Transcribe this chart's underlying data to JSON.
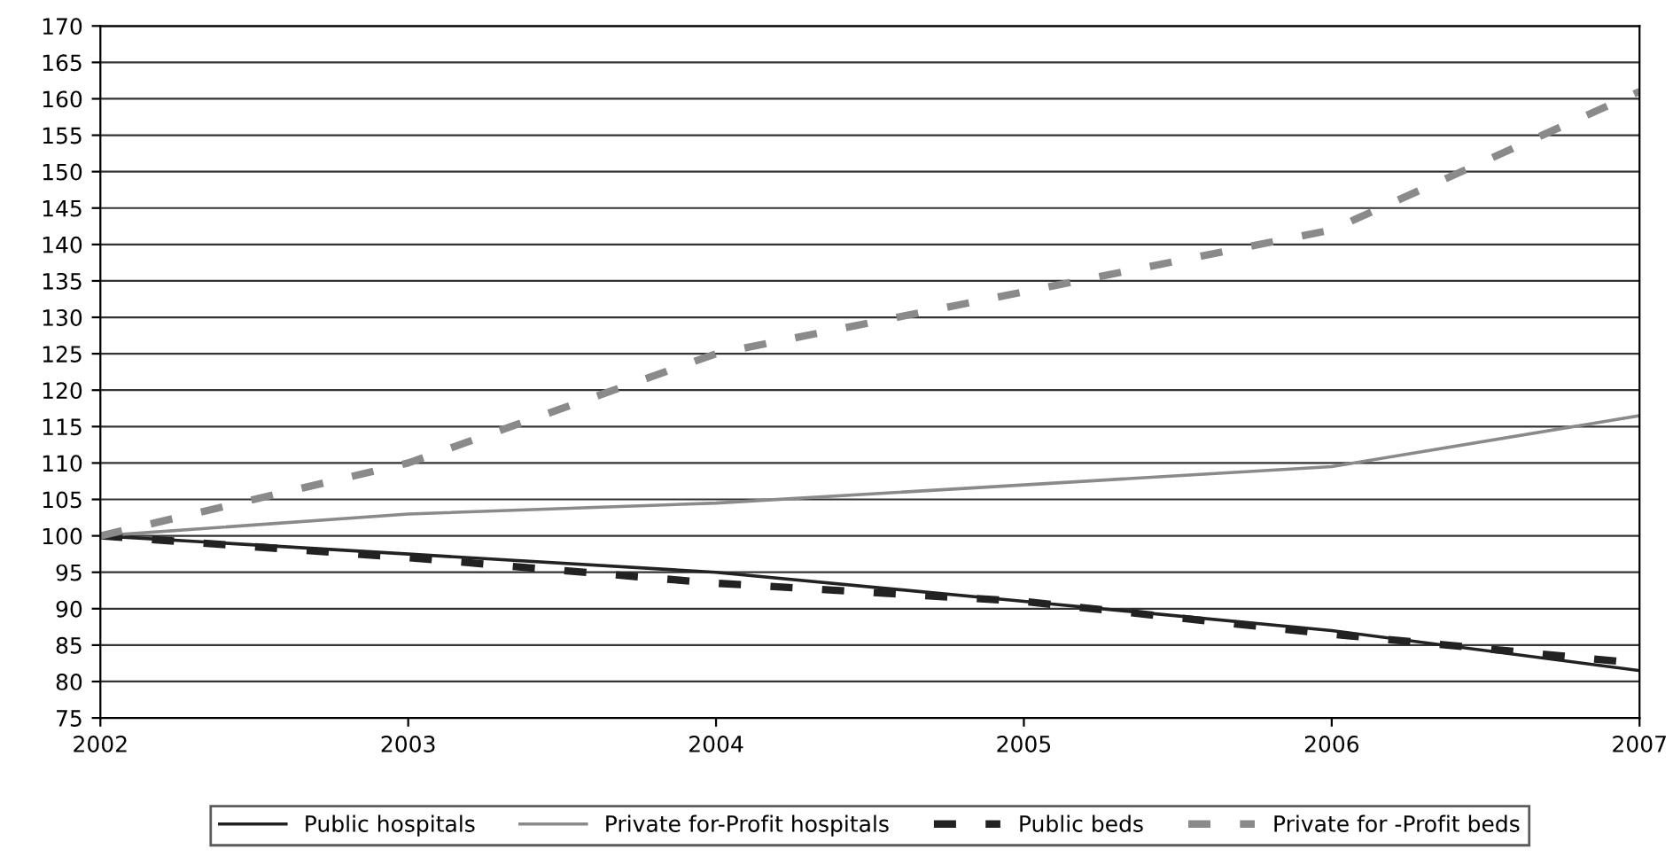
{
  "chart_data": {
    "type": "line",
    "x": [
      2002,
      2003,
      2004,
      2005,
      2006,
      2007
    ],
    "series": [
      {
        "name": "Public hospitals",
        "color": "#222222",
        "line_style": "solid",
        "values": [
          100,
          97.5,
          95,
          91,
          87,
          81.5
        ]
      },
      {
        "name": "Private for-Profit hospitals",
        "color": "#8a8a8a",
        "line_style": "solid",
        "values": [
          100,
          103,
          104.5,
          107,
          109.5,
          116.5
        ]
      },
      {
        "name": "Public beds",
        "color": "#222222",
        "line_style": "dashed",
        "values": [
          100,
          97,
          93.5,
          91,
          86.5,
          82.5
        ]
      },
      {
        "name": "Private for -Profit beds",
        "color": "#8a8a8a",
        "line_style": "dashed",
        "values": [
          100,
          110,
          125,
          133.5,
          142,
          161
        ]
      }
    ],
    "xlim": [
      2002,
      2007
    ],
    "xticks": [
      2002,
      2003,
      2004,
      2005,
      2006,
      2007
    ],
    "ylim": [
      75,
      170
    ],
    "yticks": [
      75,
      80,
      85,
      90,
      95,
      100,
      105,
      110,
      115,
      120,
      125,
      130,
      135,
      140,
      145,
      150,
      155,
      160,
      165,
      170
    ],
    "grid": "y",
    "legend": "bottom",
    "marker": "none"
  }
}
